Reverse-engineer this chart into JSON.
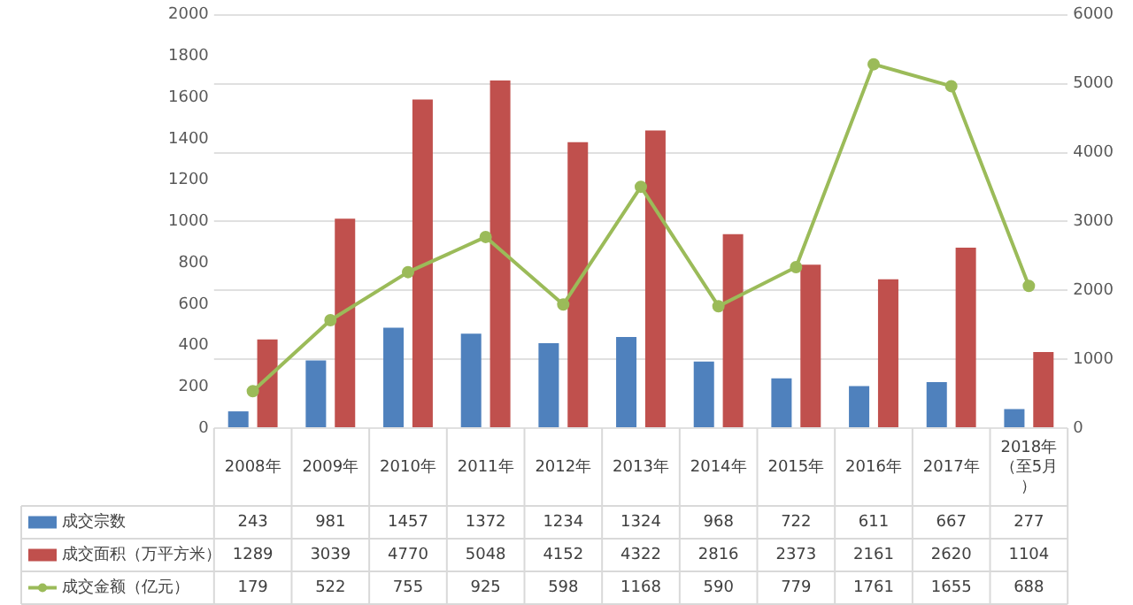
{
  "chart_data": {
    "type": "bar",
    "categories": [
      "2008年",
      "2009年",
      "2010年",
      "2011年",
      "2012年",
      "2013年",
      "2014年",
      "2015年",
      "2016年",
      "2017年",
      "2018年（至5月）"
    ],
    "series": [
      {
        "name": "成交宗数",
        "color": "#4f81bd",
        "axis": "y2",
        "values": [
          243,
          981,
          1457,
          1372,
          1234,
          1324,
          968,
          722,
          611,
          667,
          277
        ]
      },
      {
        "name": "成交面积（万平方米）",
        "color": "#c0504d",
        "axis": "y2",
        "values": [
          1289,
          3039,
          4770,
          5048,
          4152,
          4322,
          2816,
          2373,
          2161,
          2620,
          1104
        ]
      },
      {
        "name": "成交金额（亿元）",
        "type": "line",
        "marker": "circle",
        "color": "#9bbb59",
        "values": [
          179,
          522,
          755,
          925,
          598,
          1168,
          590,
          779,
          1761,
          1655,
          688
        ]
      }
    ],
    "ylim": [
      0,
      2000
    ],
    "yticks": [
      0,
      200,
      400,
      600,
      800,
      1000,
      1200,
      1400,
      1600,
      1800,
      2000
    ],
    "y2lim": [
      0,
      6000
    ],
    "y2ticks": [
      0,
      1000,
      2000,
      3000,
      4000,
      5000,
      6000
    ],
    "grid": true,
    "legend": "bottom",
    "data_labels": true
  }
}
